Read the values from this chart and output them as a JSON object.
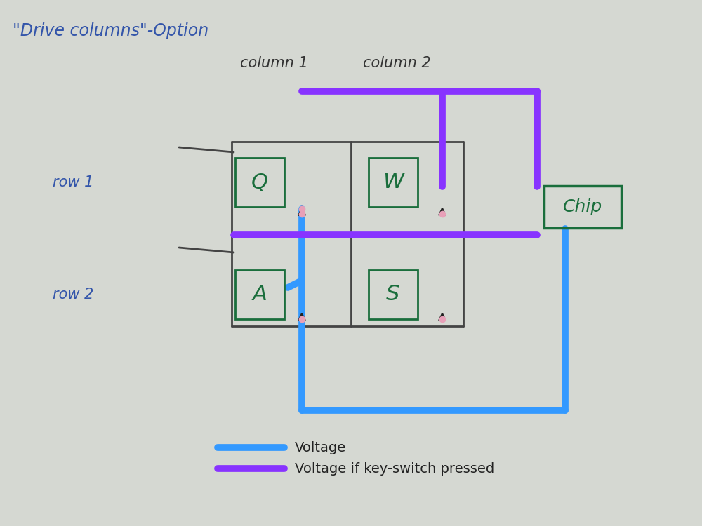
{
  "title": "\"Drive columns\"-Option",
  "title_color": "#3355aa",
  "bg_color": "#c8ccc8",
  "col1_label": "column 1",
  "col2_label": "column 2",
  "row1_label": "row 1",
  "row2_label": "row 2",
  "legend_voltage": "Voltage",
  "legend_voltage_pressed": "Voltage if key-switch pressed",
  "blue_color": "#3399ff",
  "purple_color": "#8833ff",
  "green_color": "#1a6e3c",
  "dark_color": "#444444",
  "chip_label": "Chip",
  "lw_thick": 7.0,
  "lw_wire": 2.0
}
